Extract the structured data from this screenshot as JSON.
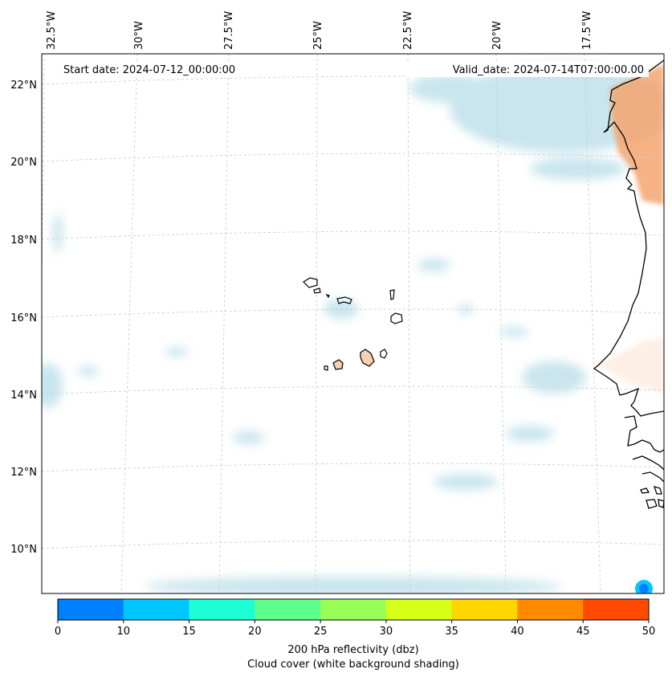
{
  "map": {
    "start_label": "Start date: 2024-07-12_00:00:00",
    "valid_label": "Valid_date: 2024-07-14T07:00:00.00",
    "longitude_labels": [
      "32.5°W",
      "30°W",
      "27.5°W",
      "25°W",
      "22.5°W",
      "20°W",
      "17.5°W"
    ],
    "latitude_labels": [
      "22°N",
      "20°N",
      "18°N",
      "16°N",
      "14°N",
      "12°N",
      "10°N"
    ],
    "gridlines": "dashed",
    "coastline_color": "#000000",
    "cloud_cover_color": "#b7dde9",
    "warm_shading_color": "#f4a46e"
  },
  "colorbar": {
    "ticks": [
      "0",
      "10",
      "15",
      "20",
      "25",
      "30",
      "35",
      "40",
      "45",
      "50"
    ],
    "colors": [
      "#0080ff",
      "#00c7ff",
      "#1fffd6",
      "#5cff8a",
      "#99ff57",
      "#d6ff1a",
      "#ffd600",
      "#ff8a00",
      "#ff4a00"
    ],
    "label_line1": "200 hPa reflectivity (dbz)",
    "label_line2": "Cloud cover (white background shading)"
  }
}
